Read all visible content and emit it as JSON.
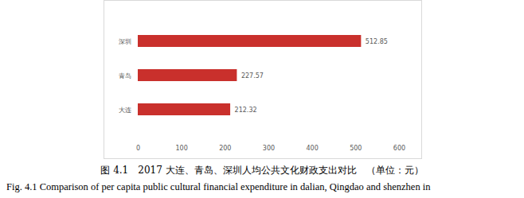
{
  "chart_data": {
    "type": "bar",
    "orientation": "horizontal",
    "title": "图 4.1　2017 大连、青岛、深圳人均公共文化财政支出对比　（单位：元）",
    "subtitle": "Fig. 4.1 Comparison of per capita public cultural financial expenditure in dalian, Qingdao and shenzhen in",
    "categories": [
      "深圳",
      "青岛",
      "大连"
    ],
    "values": [
      512.85,
      227.57,
      212.32
    ],
    "color": "#c9302c",
    "xlim": [
      0,
      600
    ],
    "xticks": [
      0,
      100,
      200,
      300,
      400,
      500,
      600
    ],
    "grid": false,
    "data_labels": true
  }
}
